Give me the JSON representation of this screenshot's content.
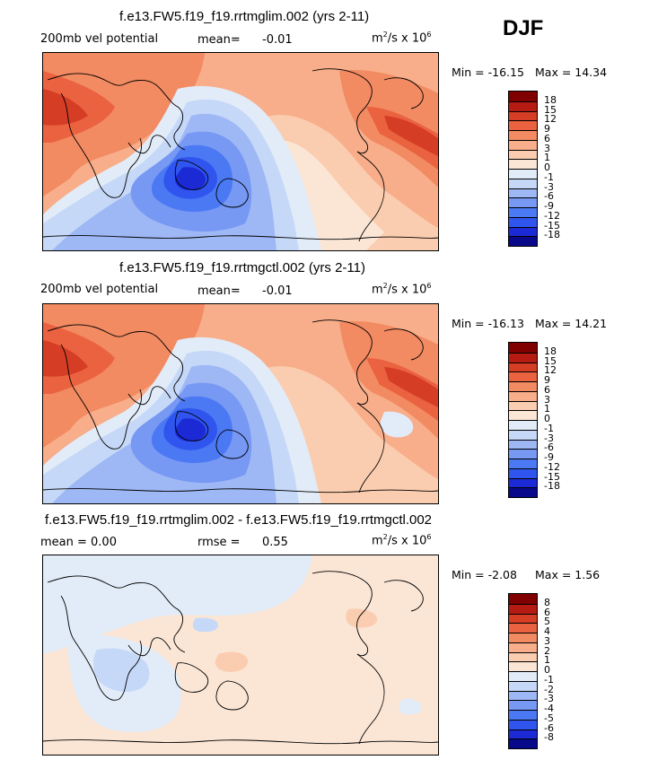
{
  "season": "DJF",
  "palette_main": [
    "#08088a",
    "#1c2ad6",
    "#2f55ee",
    "#4b79f4",
    "#7798f3",
    "#9eb8f5",
    "#c6d8f7",
    "#e2ecf8",
    "#fbe6d6",
    "#fbcdb0",
    "#f8ae8a",
    "#f28a62",
    "#ea623f",
    "#d53d25",
    "#b51b12",
    "#800000"
  ],
  "palette_diff": [
    "#08088a",
    "#1c2ad6",
    "#2f55ee",
    "#4b79f4",
    "#7798f3",
    "#9eb8f5",
    "#c6d8f7",
    "#e2ecf8",
    "#fbe6d6",
    "#fbcdb0",
    "#f8ae8a",
    "#f28a62",
    "#ea623f",
    "#d53d25",
    "#b51b12",
    "#800000"
  ],
  "panels": [
    {
      "title": "f.e13.FW5.f19_f19.rrtmglim.002 (yrs 2-11)",
      "left_label": "200mb vel potential",
      "mean_label": "mean=",
      "mean_value": "-0.01",
      "units_text": "m",
      "units_sup1": "2",
      "units_mid": "/s x 10",
      "units_sup2": "6",
      "min_text": "Min = -16.15",
      "max_text": "Max = 14.34",
      "colorbar_levels": [
        "18",
        "15",
        "12",
        "9",
        "6",
        "3",
        "1",
        "0",
        "-1",
        "-3",
        "-6",
        "-9",
        "-12",
        "-15",
        "-18"
      ]
    },
    {
      "title": "f.e13.FW5.f19_f19.rrtmgctl.002 (yrs 2-11)",
      "left_label": "200mb vel potential",
      "mean_label": "mean=",
      "mean_value": "-0.01",
      "units_text": "m",
      "units_sup1": "2",
      "units_mid": "/s x 10",
      "units_sup2": "6",
      "min_text": "Min = -16.13",
      "max_text": "Max = 14.21",
      "colorbar_levels": [
        "18",
        "15",
        "12",
        "9",
        "6",
        "3",
        "1",
        "0",
        "-1",
        "-3",
        "-6",
        "-9",
        "-12",
        "-15",
        "-18"
      ]
    },
    {
      "title": "f.e13.FW5.f19_f19.rrtmglim.002 - f.e13.FW5.f19_f19.rrtmgctl.002",
      "left_label": "mean =   0.00",
      "mean_label": "rmse =",
      "mean_value": "0.55",
      "units_text": "m",
      "units_sup1": "2",
      "units_mid": "/s x 10",
      "units_sup2": "6",
      "min_text": "Min = -2.08",
      "max_text": "Max = 1.56",
      "colorbar_levels": [
        "8",
        "6",
        "5",
        "4",
        "3",
        "2",
        "1",
        "0",
        "-1",
        "-2",
        "-3",
        "-4",
        "-5",
        "-6",
        "-8"
      ]
    }
  ]
}
